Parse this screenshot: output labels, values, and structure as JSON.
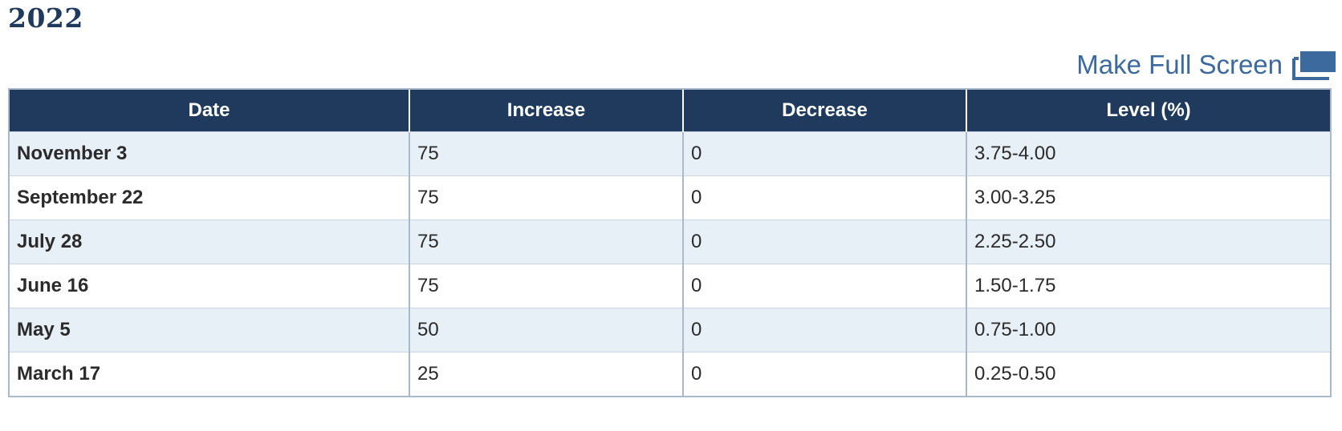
{
  "heading": {
    "year": "2022"
  },
  "fullscreen": {
    "label": "Make Full Screen",
    "icon": "fullscreen-icon"
  },
  "table": {
    "columns": [
      "Date",
      "Increase",
      "Decrease",
      "Level (%)"
    ],
    "rows": [
      [
        "November 3",
        "75",
        "0",
        "3.75-4.00"
      ],
      [
        "September 22",
        "75",
        "0",
        "3.00-3.25"
      ],
      [
        "July 28",
        "75",
        "0",
        "2.25-2.50"
      ],
      [
        "June 16",
        "75",
        "0",
        "1.50-1.75"
      ],
      [
        "May 5",
        "50",
        "0",
        "0.75-1.00"
      ],
      [
        "March 17",
        "25",
        "0",
        "0.25-0.50"
      ]
    ]
  },
  "colors": {
    "header_bg": "#1f3a5c",
    "link": "#3d6a9e",
    "row_alt": "#e7eff7",
    "border": "#a9b9cc"
  }
}
